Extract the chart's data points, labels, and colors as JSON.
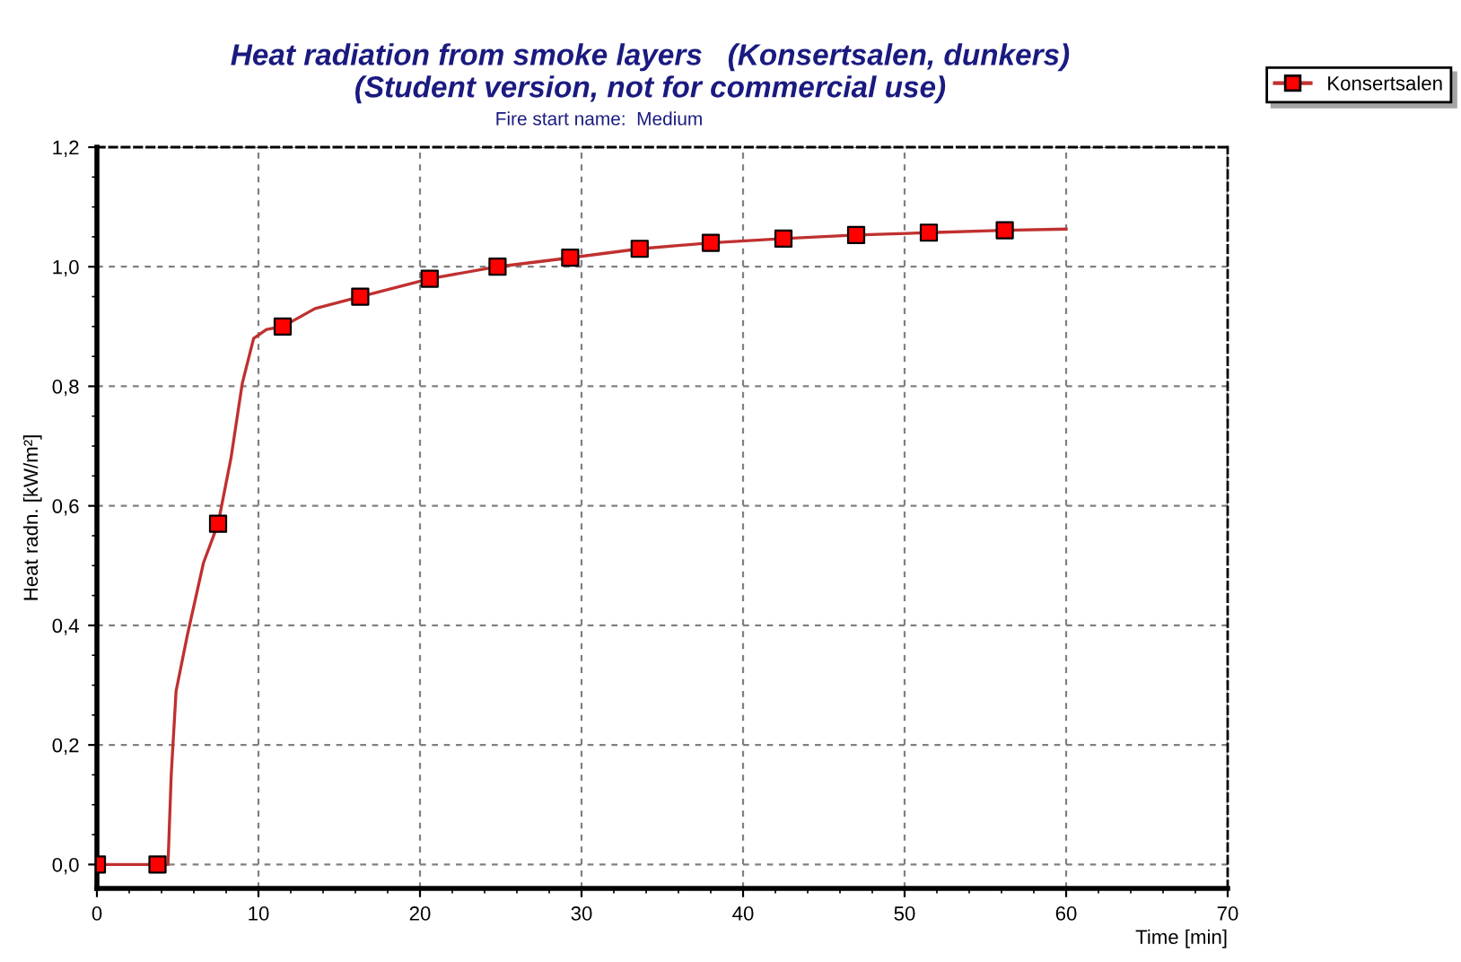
{
  "chart_data": {
    "type": "line",
    "title": "Heat radiation from smoke layers   (Konsertsalen, dunkers)\n(Student version, not for commercial use)",
    "subtitle": "Fire start name:  Medium",
    "xlabel": "Time [min]",
    "ylabel": "Heat radn. [kW/m²]",
    "series": [
      {
        "name": "Konsertsalen",
        "color": "#c03030",
        "marker": "none",
        "x": [
          0,
          3.75,
          4.4,
          4.6,
          4.9,
          5.6,
          6.6,
          7.5,
          8.3,
          9.0,
          9.7,
          10.5,
          11.5,
          13.5,
          16.3,
          20.6,
          24.8,
          29.3,
          33.6,
          38.0,
          42.5,
          47.0,
          51.5,
          56.2,
          60
        ],
        "values": [
          0,
          0,
          0,
          0.15,
          0.29,
          0.384,
          0.505,
          0.57,
          0.68,
          0.805,
          0.88,
          0.895,
          0.9,
          0.93,
          0.95,
          0.98,
          1.0,
          1.015,
          1.03,
          1.04,
          1.047,
          1.053,
          1.057,
          1.061,
          1.063
        ]
      },
      {
        "type": "scatter",
        "color": "#ff0000",
        "marker": "square",
        "x": [
          0,
          3.75,
          7.5,
          11.5,
          16.3,
          20.6,
          24.8,
          29.3,
          33.6,
          38.0,
          42.5,
          47.0,
          51.5,
          56.2
        ],
        "values": [
          0,
          0,
          0.57,
          0.9,
          0.95,
          0.98,
          1.0,
          1.015,
          1.03,
          1.04,
          1.047,
          1.053,
          1.057,
          1.061
        ]
      }
    ],
    "xlim": [
      0,
      70
    ],
    "xticks": [
      0,
      10,
      20,
      30,
      40,
      50,
      60,
      70
    ],
    "ylim": [
      -0.04,
      1.2
    ],
    "yticks": [
      {
        "value": 0,
        "label": "0,0"
      },
      {
        "value": 0.2,
        "label": "0,2"
      },
      {
        "value": 0.4,
        "label": "0,4"
      },
      {
        "value": 0.6,
        "label": "0,6"
      },
      {
        "value": 0.8,
        "label": "0,8"
      },
      {
        "value": 1.0,
        "label": "1,0"
      },
      {
        "value": 1.2,
        "label": "1,2"
      }
    ],
    "grid": true,
    "legend": "top right"
  }
}
